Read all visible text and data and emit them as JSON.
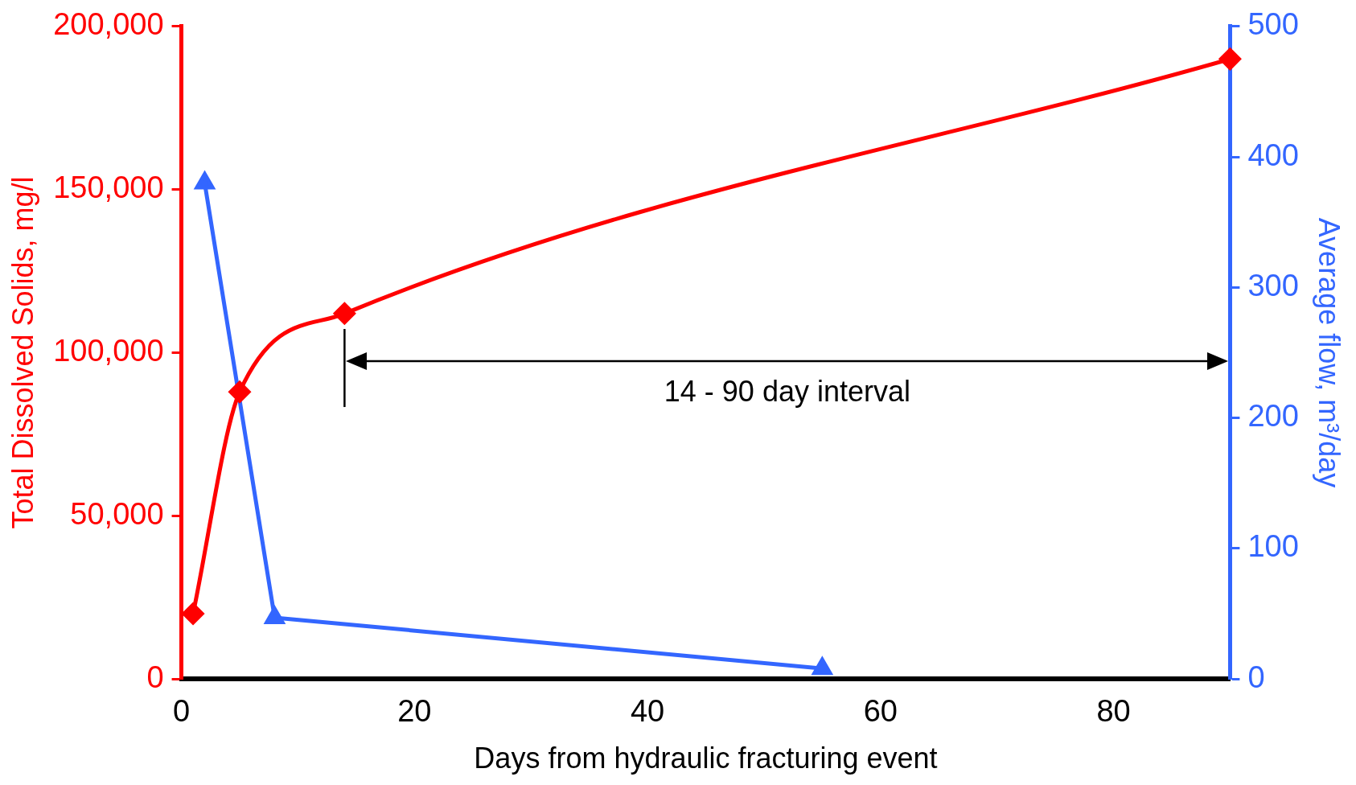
{
  "chart_data": {
    "type": "line",
    "xlabel": "Days from hydraulic fracturing event",
    "ylabel": "Total Dissolved Solids, mg/l",
    "y2label": "Average flow, m³/day",
    "xlim": [
      0,
      90
    ],
    "xticks": [
      0,
      20,
      40,
      60,
      80
    ],
    "ylim": [
      0,
      200000
    ],
    "yticks": [
      {
        "value": 0,
        "label": "0"
      },
      {
        "value": 50000,
        "label": "50,000"
      },
      {
        "value": 100000,
        "label": "100,000"
      },
      {
        "value": 150000,
        "label": "150,000"
      },
      {
        "value": 200000,
        "label": "200,000"
      }
    ],
    "y2lim": [
      0,
      500
    ],
    "y2ticks": [
      0,
      100,
      200,
      300,
      400,
      500
    ],
    "grid": false,
    "legend": false,
    "ref_lines": [
      {
        "axis": "x",
        "value": 14,
        "color": "#000000"
      }
    ],
    "annotations": [
      "14 - 90 day interval"
    ],
    "series": [
      {
        "color": "#ff0000",
        "marker": "diamond",
        "x": [
          1,
          5,
          14,
          90
        ],
        "values": [
          20000,
          88000,
          112000,
          190000
        ]
      },
      {
        "color": "#3366ff",
        "marker": "triangle",
        "axis": "y2",
        "x": [
          2,
          8,
          55
        ],
        "values": [
          380,
          47,
          8
        ]
      }
    ]
  }
}
